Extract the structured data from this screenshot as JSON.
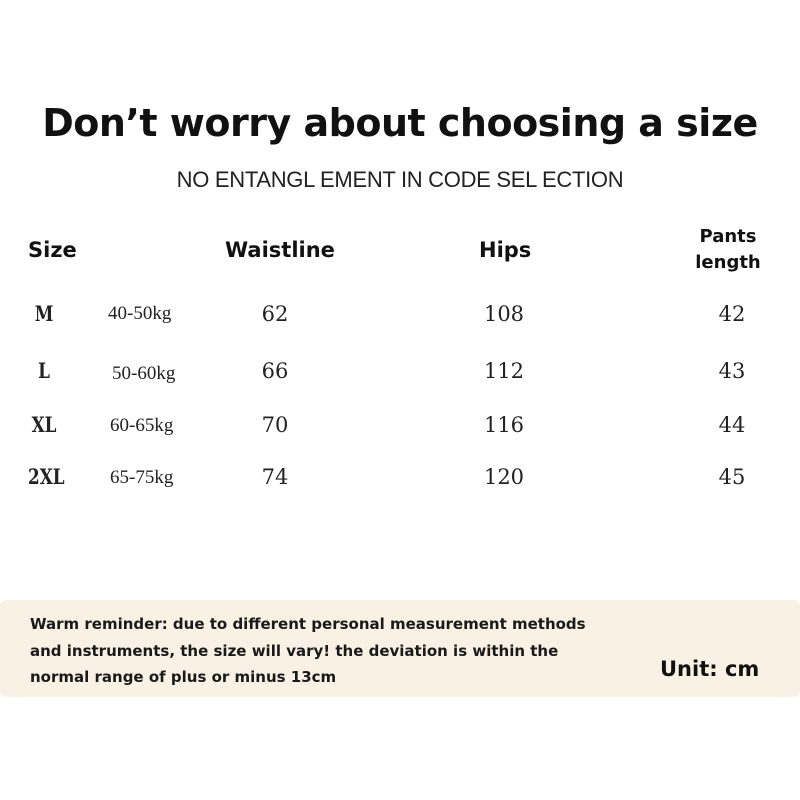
{
  "header": {
    "title": "Don’t worry about choosing a size",
    "subtitle": "NO ENTANGL EMENT IN CODE SEL ECTION"
  },
  "table": {
    "columns": {
      "size": "Size",
      "waistline": "Waistline",
      "hips": "Hips",
      "pants_line1": "Pants",
      "pants_line2": "length"
    },
    "rows": [
      {
        "size": "M",
        "weight": "40-50kg",
        "waistline": "62",
        "hips": "108",
        "pants": "42"
      },
      {
        "size": "L",
        "weight": "50-60kg",
        "waistline": "66",
        "hips": "112",
        "pants": "43"
      },
      {
        "size": "XL",
        "weight": "60-65kg",
        "waistline": "70",
        "hips": "116",
        "pants": "44"
      },
      {
        "size": "2XL",
        "weight": "65-75kg",
        "waistline": "74",
        "hips": "120",
        "pants": "45"
      }
    ]
  },
  "footer": {
    "reminder_line1": "Warm reminder: due to different personal measurement methods",
    "reminder_line2": "and instruments, the size will vary! the deviation is within the",
    "reminder_line3": "normal range of plus or minus 13cm",
    "unit": "Unit: cm"
  },
  "colors": {
    "background": "#ffffff",
    "reminder_band": "#f8f1e4",
    "text": "#111111"
  }
}
